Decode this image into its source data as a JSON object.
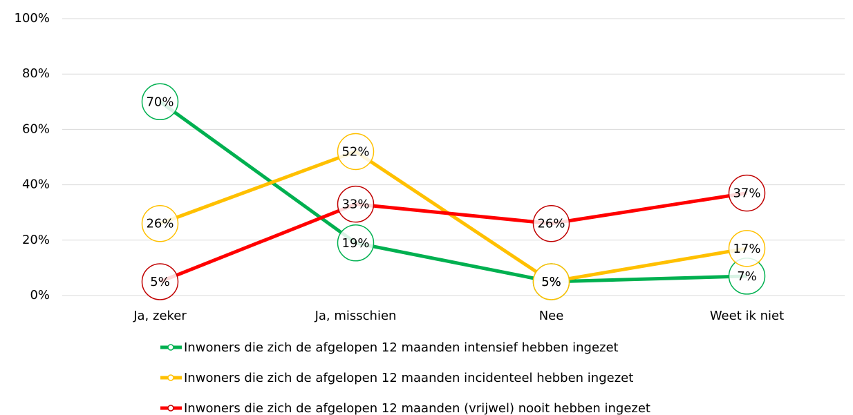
{
  "chart_data": {
    "type": "line",
    "categories": [
      "Ja, zeker",
      "Ja, misschien",
      "Nee",
      "Weet ik niet"
    ],
    "series": [
      {
        "name": "Inwoners die zich de afgelopen 12 maanden intensief hebben ingezet",
        "color": "#00b050",
        "marker_color": "#00b050",
        "values": [
          70,
          19,
          5,
          7
        ],
        "value_labels": [
          "70%",
          "19%",
          "5%",
          "7%"
        ]
      },
      {
        "name": "Inwoners die zich de afgelopen 12 maanden incidenteel hebben ingezet",
        "color": "#ffc000",
        "marker_color": "#ffc000",
        "values": [
          26,
          52,
          5,
          17
        ],
        "value_labels": [
          "26%",
          "52%",
          "5%",
          "17%"
        ]
      },
      {
        "name": "Inwoners die zich de afgelopen 12 maanden (vrijwel) nooit hebben ingezet",
        "color": "#ff0000",
        "marker_color": "#c00000",
        "values": [
          5,
          33,
          26,
          37
        ],
        "value_labels": [
          "5%",
          "33%",
          "26%",
          "37%"
        ]
      }
    ],
    "ylim": [
      0,
      100
    ],
    "yticks": [
      {
        "value": 0,
        "label": "0%"
      },
      {
        "value": 20,
        "label": "20%"
      },
      {
        "value": 40,
        "label": "40%"
      },
      {
        "value": 60,
        "label": "60%"
      },
      {
        "value": 80,
        "label": "80%"
      },
      {
        "value": 100,
        "label": "100%"
      }
    ],
    "grid": true,
    "legend": "bottom"
  }
}
